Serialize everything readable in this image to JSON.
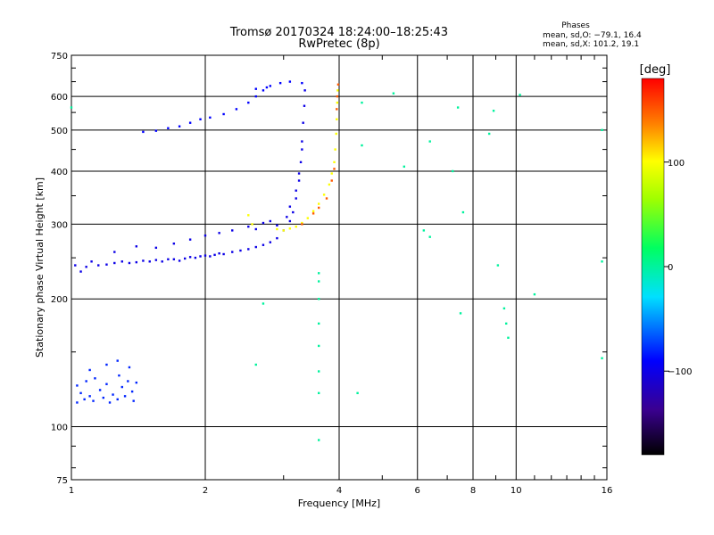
{
  "chart_data": {
    "type": "scatter",
    "title": "Tromsø 20170324 18:24:00–18:25:43",
    "subtitle": "RwPretec (8p)",
    "xlabel": "Frequency [MHz]",
    "ylabel": "Stationary phase Virtual Height [km]",
    "x_scale": "log2",
    "y_scale": "log",
    "xlim": [
      1,
      16
    ],
    "ylim": [
      75,
      750
    ],
    "x_ticks": [
      1,
      2,
      4,
      6,
      8,
      10,
      16
    ],
    "x_tick_labels": [
      "1",
      "2",
      "4",
      "6",
      "8",
      "10",
      "16"
    ],
    "y_ticks": [
      75,
      100,
      200,
      300,
      400,
      500,
      600,
      750
    ],
    "y_tick_labels": [
      "75",
      "100",
      "200",
      "300",
      "400",
      "500",
      "600",
      "750"
    ],
    "grid": true,
    "phase_info": {
      "heading": "Phases",
      "line_o": "mean, sd,O: −79.1, 16.4",
      "line_x": "mean, sd,X: 101.2, 19.1"
    },
    "colorbar": {
      "label": "[deg]",
      "range": [
        -180,
        180
      ],
      "ticks": [
        100,
        0,
        -100
      ],
      "tick_labels": [
        "100",
        "0",
        "−100"
      ]
    },
    "series": [
      {
        "points": [
          [
            1.02,
            240
          ],
          [
            1.05,
            232
          ],
          [
            1.08,
            238
          ],
          [
            1.11,
            245
          ],
          [
            1.15,
            240
          ],
          [
            1.2,
            241
          ],
          [
            1.25,
            243
          ],
          [
            1.3,
            245
          ],
          [
            1.35,
            243
          ],
          [
            1.4,
            244
          ],
          [
            1.45,
            246
          ],
          [
            1.5,
            245
          ],
          [
            1.55,
            247
          ],
          [
            1.6,
            245
          ],
          [
            1.65,
            248
          ],
          [
            1.7,
            248
          ],
          [
            1.75,
            246
          ],
          [
            1.8,
            249
          ],
          [
            1.85,
            251
          ],
          [
            1.9,
            250
          ],
          [
            1.95,
            252
          ],
          [
            2.0,
            253
          ],
          [
            2.05,
            252
          ],
          [
            2.1,
            254
          ],
          [
            2.15,
            256
          ],
          [
            2.2,
            255
          ],
          [
            2.3,
            258
          ],
          [
            2.4,
            260
          ],
          [
            2.5,
            262
          ],
          [
            2.6,
            265
          ],
          [
            2.7,
            268
          ],
          [
            2.8,
            272
          ],
          [
            2.9,
            278
          ],
          [
            3.0,
            290
          ],
          [
            3.1,
            305
          ],
          [
            3.15,
            320
          ],
          [
            3.2,
            345
          ],
          [
            3.25,
            380
          ],
          [
            3.28,
            420
          ],
          [
            3.3,
            470
          ],
          [
            3.32,
            520
          ],
          [
            3.34,
            570
          ],
          [
            3.35,
            620
          ],
          [
            1.25,
            258
          ],
          [
            1.4,
            266
          ],
          [
            1.55,
            264
          ],
          [
            1.7,
            270
          ],
          [
            1.85,
            276
          ],
          [
            2.0,
            282
          ],
          [
            2.15,
            286
          ],
          [
            2.3,
            290
          ],
          [
            2.5,
            296
          ],
          [
            2.6,
            292
          ],
          [
            2.7,
            302
          ],
          [
            2.8,
            305
          ],
          [
            2.9,
            298
          ],
          [
            3.05,
            312
          ],
          [
            3.1,
            330
          ],
          [
            3.2,
            360
          ],
          [
            3.25,
            395
          ],
          [
            3.3,
            450
          ]
        ],
        "phase": -100
      },
      {
        "points": [
          [
            1.45,
            495
          ],
          [
            1.55,
            498
          ],
          [
            1.65,
            505
          ],
          [
            1.75,
            510
          ],
          [
            1.85,
            520
          ],
          [
            1.95,
            530
          ],
          [
            2.05,
            535
          ],
          [
            2.2,
            545
          ],
          [
            2.35,
            560
          ],
          [
            2.5,
            580
          ],
          [
            2.6,
            600
          ],
          [
            2.7,
            620
          ],
          [
            2.8,
            635
          ],
          [
            2.95,
            645
          ],
          [
            3.1,
            650
          ],
          [
            3.3,
            645
          ],
          [
            2.6,
            625
          ],
          [
            2.75,
            630
          ]
        ],
        "phase": -90
      },
      {
        "points": [
          [
            1.03,
            125
          ],
          [
            1.05,
            120
          ],
          [
            1.08,
            128
          ],
          [
            1.1,
            118
          ],
          [
            1.13,
            130
          ],
          [
            1.16,
            122
          ],
          [
            1.2,
            126
          ],
          [
            1.24,
            119
          ],
          [
            1.28,
            132
          ],
          [
            1.3,
            124
          ],
          [
            1.34,
            128
          ],
          [
            1.37,
            121
          ],
          [
            1.4,
            127
          ],
          [
            1.03,
            114
          ],
          [
            1.07,
            116
          ],
          [
            1.12,
            115
          ],
          [
            1.18,
            117
          ],
          [
            1.22,
            114
          ],
          [
            1.27,
            116
          ],
          [
            1.32,
            118
          ],
          [
            1.38,
            115
          ],
          [
            1.1,
            136
          ],
          [
            1.2,
            140
          ],
          [
            1.27,
            143
          ],
          [
            1.35,
            138
          ]
        ],
        "phase": -80
      },
      {
        "points": [
          [
            2.9,
            292
          ],
          [
            3.0,
            290
          ],
          [
            3.1,
            293
          ],
          [
            3.2,
            296
          ],
          [
            3.3,
            302
          ],
          [
            3.4,
            310
          ],
          [
            3.5,
            322
          ],
          [
            3.6,
            335
          ],
          [
            3.7,
            352
          ],
          [
            3.8,
            372
          ],
          [
            3.85,
            395
          ],
          [
            3.9,
            420
          ],
          [
            3.92,
            450
          ],
          [
            3.94,
            490
          ],
          [
            3.95,
            530
          ],
          [
            3.96,
            580
          ],
          [
            3.97,
            620
          ],
          [
            2.5,
            315
          ],
          [
            2.55,
            300
          ]
        ],
        "phase": 100
      },
      {
        "points": [
          [
            3.3,
            300
          ],
          [
            3.5,
            318
          ],
          [
            3.6,
            328
          ],
          [
            3.75,
            345
          ],
          [
            3.85,
            380
          ],
          [
            3.9,
            405
          ],
          [
            3.95,
            560
          ],
          [
            3.96,
            600
          ],
          [
            3.98,
            640
          ]
        ],
        "phase": 150
      },
      {
        "points": [
          [
            1.0,
            565
          ],
          [
            5.3,
            610
          ],
          [
            5.6,
            410
          ],
          [
            6.4,
            470
          ],
          [
            7.2,
            400
          ],
          [
            7.6,
            320
          ],
          [
            8.7,
            490
          ],
          [
            8.9,
            555
          ],
          [
            10.2,
            605
          ],
          [
            11.0,
            205
          ],
          [
            15.6,
            500
          ],
          [
            15.6,
            245
          ],
          [
            15.6,
            145
          ],
          [
            2.6,
            140
          ],
          [
            2.7,
            195
          ],
          [
            3.6,
            230
          ],
          [
            3.6,
            220
          ],
          [
            3.6,
            200
          ],
          [
            3.6,
            175
          ],
          [
            3.6,
            155
          ],
          [
            3.6,
            135
          ],
          [
            3.6,
            120
          ],
          [
            3.6,
            93
          ],
          [
            4.4,
            120
          ],
          [
            4.5,
            580
          ],
          [
            4.5,
            460
          ],
          [
            6.2,
            290
          ],
          [
            6.4,
            280
          ],
          [
            7.5,
            185
          ],
          [
            9.1,
            240
          ],
          [
            9.4,
            190
          ],
          [
            9.5,
            175
          ],
          [
            9.6,
            162
          ],
          [
            7.4,
            565
          ]
        ],
        "phase": 0
      }
    ]
  }
}
